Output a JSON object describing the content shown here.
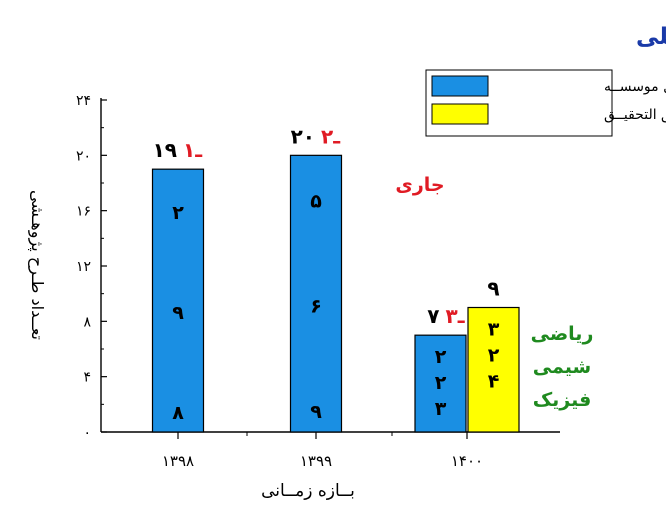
{
  "chart_data": {
    "type": "bar",
    "title": "طرح پژوهشی داخلی",
    "xlabel": "بــازه زمــانی",
    "ylabel": "تعــداد طـرح پژوهـشی",
    "ylim": [
      0,
      24
    ],
    "yticks": [
      "۰",
      "۴",
      "۸",
      "۱۲",
      "۱۶",
      "۲۰",
      "۲۴"
    ],
    "categories": [
      "۱۳۹۸",
      "۱۳۹۹",
      "۱۴۰۰"
    ],
    "series": [
      {
        "name": "داخل موسســه",
        "color": "#1a8fe3",
        "values": [
          19,
          20,
          7
        ]
      },
      {
        "name": "حــق التحقیــق",
        "color": "#ffff00",
        "values": [
          null,
          null,
          9
        ]
      }
    ],
    "bar_texts": [
      {
        "series": 0,
        "category": 0,
        "top_black": "۱۹",
        "top_red": "۱ـ",
        "inside": [
          "۲",
          "۹",
          "۸"
        ]
      },
      {
        "series": 0,
        "category": 1,
        "top_black": "۲۰",
        "top_red": "۲ـ",
        "inside": [
          "۵",
          "۶",
          "۹"
        ]
      },
      {
        "series": 0,
        "category": 2,
        "top_black": "۷",
        "top_red": "۳ـ",
        "inside": [
          "۲",
          "۲",
          "۳"
        ]
      },
      {
        "series": 1,
        "category": 2,
        "top_black": "۹",
        "top_red": "",
        "inside": [
          "۳",
          "۲",
          "۴"
        ]
      }
    ],
    "annotations": {
      "current": {
        "text": "جاری",
        "color": "#e01b24"
      },
      "fields": {
        "lines": [
          "ریاضی",
          "شیمی",
          "فیزیک"
        ],
        "color": "#1f8a1f"
      }
    },
    "legend_position": "top-right",
    "grid": false
  }
}
